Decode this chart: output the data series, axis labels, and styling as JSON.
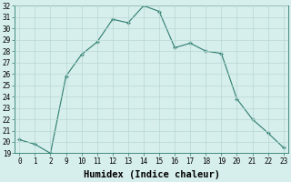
{
  "xlabel": "Humidex (Indice chaleur)",
  "x_labels": [
    "0",
    "1",
    "2",
    "9",
    "10",
    "11",
    "12",
    "13",
    "14",
    "15",
    "16",
    "17",
    "18",
    "19",
    "20",
    "21",
    "22",
    "23"
  ],
  "y_values": [
    20.2,
    19.8,
    19.0,
    25.8,
    27.7,
    28.8,
    30.8,
    30.5,
    32.0,
    31.5,
    28.3,
    28.7,
    28.0,
    27.8,
    23.8,
    22.0,
    20.8,
    19.5
  ],
  "line_color": "#2d7d6e",
  "bg_color": "#d6eeec",
  "grid_color": "#b8d8d4",
  "ylim": [
    19,
    32
  ],
  "yticks": [
    19,
    20,
    21,
    22,
    23,
    24,
    25,
    26,
    27,
    28,
    29,
    30,
    31,
    32
  ],
  "tick_fontsize": 5.5,
  "xlabel_fontsize": 7.5
}
